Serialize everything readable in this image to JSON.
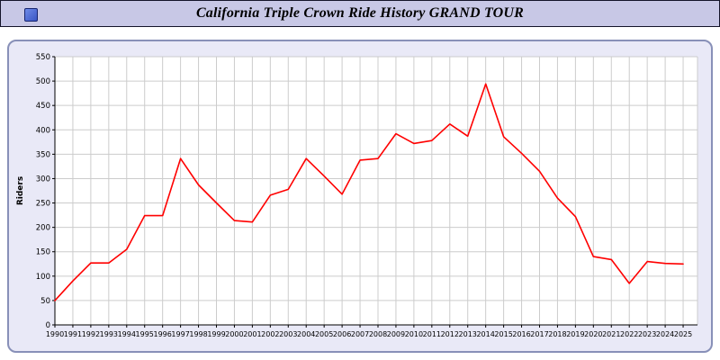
{
  "title_bar": {
    "title": "California Triple Crown Ride History GRAND TOUR",
    "icon": "app-window-icon"
  },
  "chart_data": {
    "type": "line",
    "title": "",
    "xlabel": "",
    "ylabel": "Riders",
    "ylim": [
      0,
      550
    ],
    "ytick_step": 50,
    "grid": true,
    "legend": "none",
    "plot_bg": "#ffffff",
    "grid_color": "#cccccc",
    "axis_color": "#000000",
    "x": [
      1990,
      1991,
      1992,
      1993,
      1994,
      1995,
      1996,
      1997,
      1998,
      1999,
      2000,
      2001,
      2002,
      2003,
      2004,
      2005,
      2006,
      2007,
      2008,
      2009,
      2010,
      2011,
      2012,
      2013,
      2014,
      2015,
      2016,
      2017,
      2018,
      2019,
      2020,
      2021,
      2022,
      2023,
      2024,
      2025
    ],
    "series": [
      {
        "name": "Riders",
        "color": "#ff0000",
        "values": [
          50,
          90,
          127,
          127,
          155,
          224,
          224,
          341,
          287,
          250,
          214,
          211,
          266,
          278,
          341,
          305,
          268,
          338,
          341,
          392,
          372,
          378,
          412,
          387,
          494,
          386,
          352,
          315,
          260,
          222,
          140,
          134,
          85,
          130,
          126,
          125
        ]
      }
    ]
  },
  "colors": {
    "titlebar_bg": "#c8c8e6",
    "panel_bg": "#e9e9f7",
    "panel_border": "#8890b8"
  }
}
